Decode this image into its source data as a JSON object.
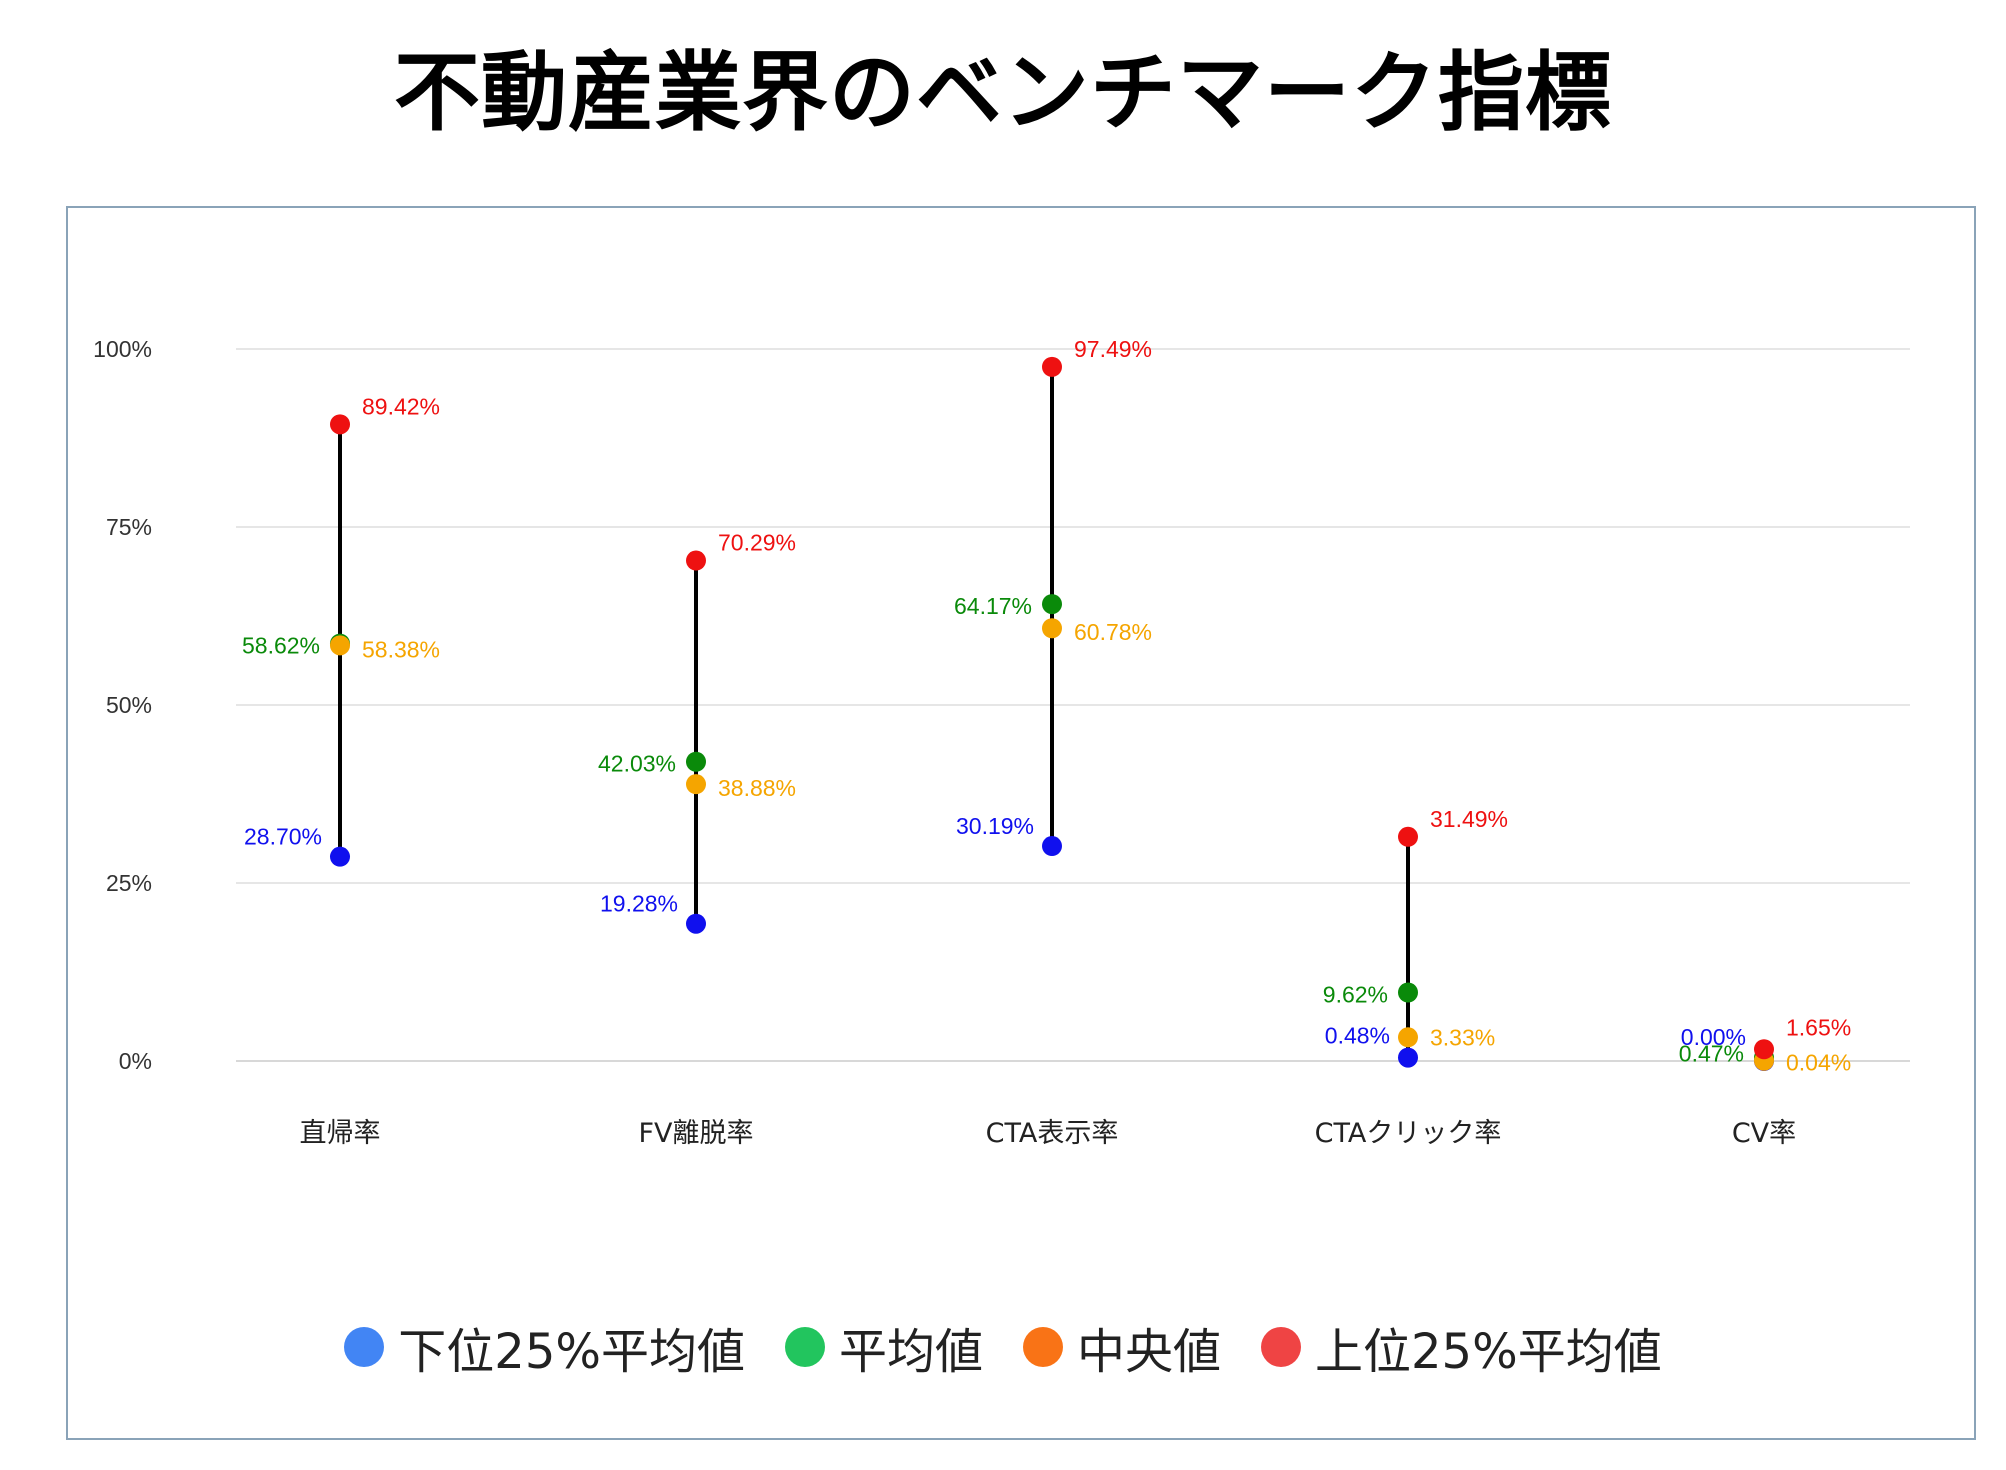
{
  "title": "不動産業界のベンチマーク指標",
  "chart_data": {
    "type": "scatter",
    "title": "",
    "xlabel": "",
    "ylabel": "",
    "ylim": [
      0,
      100
    ],
    "y_ticks": [
      "0%",
      "25%",
      "50%",
      "75%",
      "100%"
    ],
    "grid": true,
    "legend_position": "bottom",
    "categories": [
      "直帰率",
      "FV離脱率",
      "CTA表示率",
      "CTAクリック率",
      "CV率"
    ],
    "series": [
      {
        "name": "下位25%平均値",
        "color": "#1010ee",
        "legend_color": "#4285f4",
        "values": [
          28.7,
          19.28,
          30.19,
          0.48,
          0.0
        ],
        "labels": [
          "28.70%",
          "19.28%",
          "30.19%",
          "0.48%",
          "0.00%"
        ]
      },
      {
        "name": "平均値",
        "color": "#0a8a0a",
        "legend_color": "#22c55e",
        "values": [
          58.62,
          42.03,
          64.17,
          9.62,
          0.47
        ],
        "labels": [
          "58.62%",
          "42.03%",
          "64.17%",
          "9.62%",
          "0.47%"
        ]
      },
      {
        "name": "中央値",
        "color": "#f5a500",
        "legend_color": "#f97316",
        "values": [
          58.38,
          38.88,
          60.78,
          3.33,
          0.04
        ],
        "labels": [
          "58.38%",
          "38.88%",
          "60.78%",
          "3.33%",
          "0.04%"
        ]
      },
      {
        "name": "上位25%平均値",
        "color": "#ee1111",
        "legend_color": "#ef4444",
        "values": [
          89.42,
          70.29,
          97.49,
          31.49,
          1.65
        ],
        "labels": [
          "89.42%",
          "70.29%",
          "97.49%",
          "31.49%",
          "1.65%"
        ]
      }
    ]
  }
}
